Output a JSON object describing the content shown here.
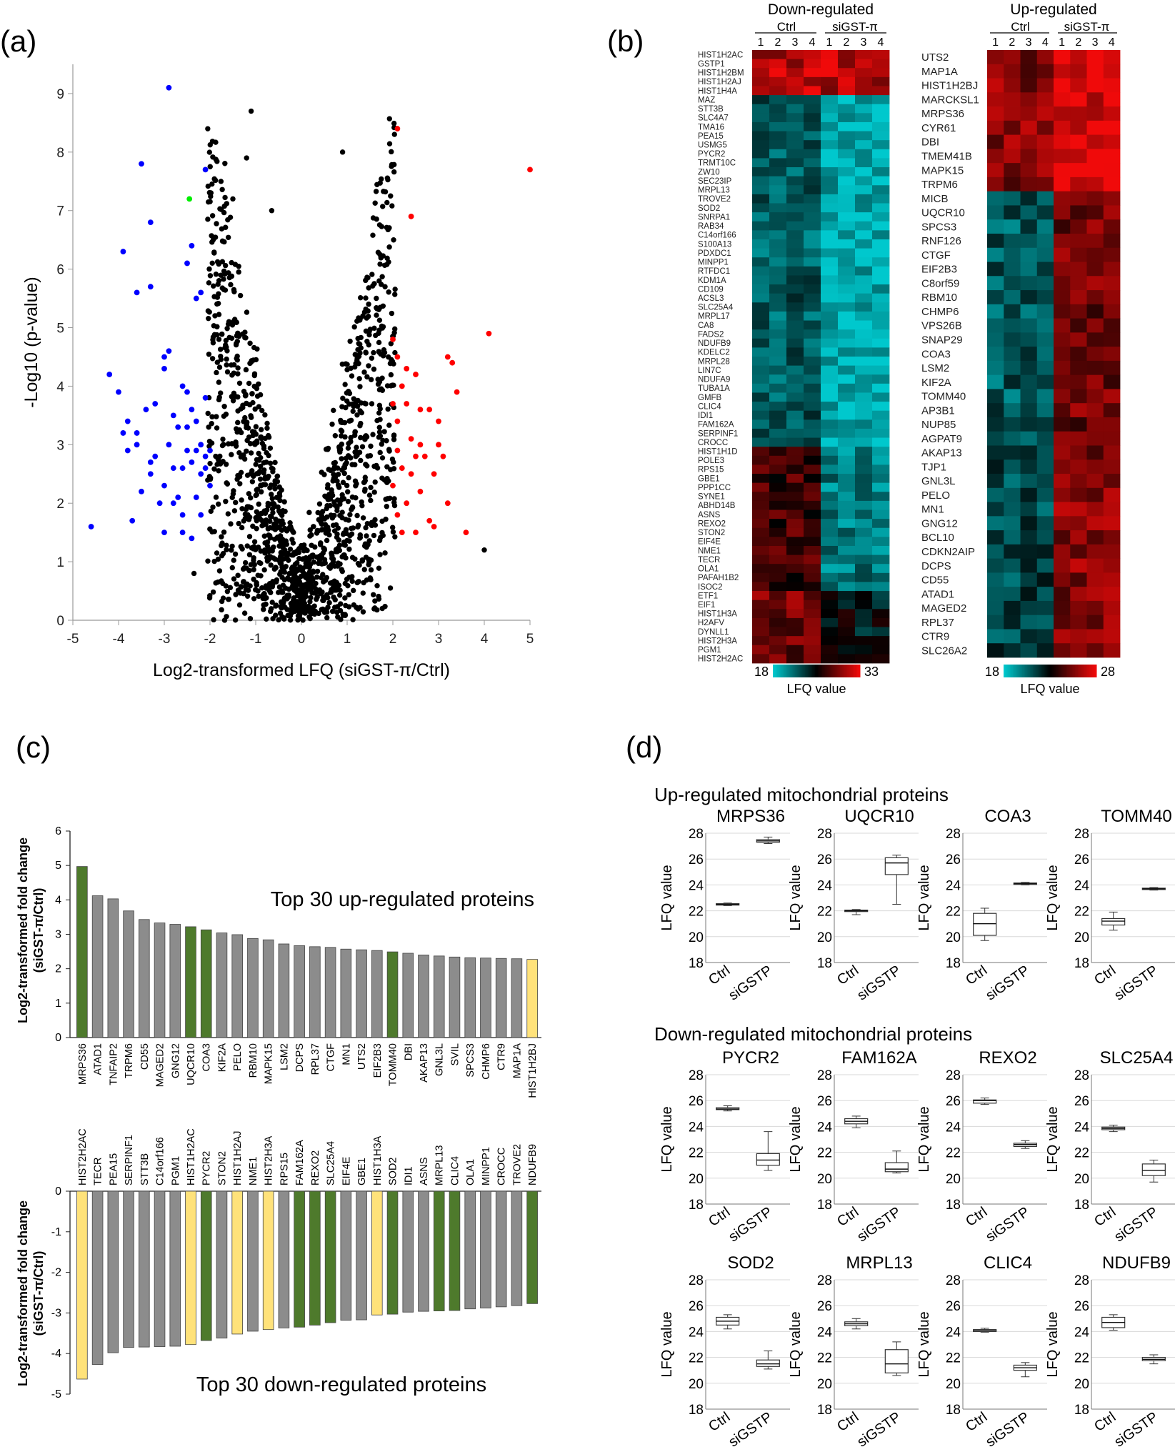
{
  "panel_labels": {
    "a": "(a)",
    "b": "(b)",
    "c": "(c)",
    "d": "(d)"
  },
  "chart_data": [
    {
      "id": "volcano",
      "type": "scatter",
      "title": "",
      "xlabel": "Log2-transformed LFQ (siGST-π/Ctrl)",
      "ylabel": "-Log10 (p-value)",
      "xlim": [
        -5,
        5
      ],
      "ylim": [
        0,
        9.5
      ],
      "xticks": [
        -5,
        -4,
        -3,
        -2,
        -1,
        0,
        1,
        2,
        3,
        4,
        5
      ],
      "yticks": [
        0,
        1,
        2,
        3,
        4,
        5,
        6,
        7,
        8,
        9
      ],
      "colors": {
        "ns": "#000000",
        "down": "#0000ff",
        "up": "#ff0000",
        "highlight": "#00ee00"
      },
      "series": [
        {
          "name": "down-regulated",
          "color": "#0000ff",
          "points": [
            [
              -2.9,
              9.1
            ],
            [
              -3.5,
              7.8
            ],
            [
              -2.1,
              7.7
            ],
            [
              -3.9,
              6.3
            ],
            [
              -3.3,
              6.8
            ],
            [
              -2.4,
              6.4
            ],
            [
              -3.3,
              5.7
            ],
            [
              -3.6,
              5.6
            ],
            [
              -2.5,
              6.1
            ],
            [
              -2.3,
              5.5
            ],
            [
              -2.2,
              5.6
            ],
            [
              -4.6,
              1.6
            ],
            [
              -4.2,
              4.2
            ],
            [
              -4.0,
              3.9
            ],
            [
              -3.7,
              1.7
            ],
            [
              -3.8,
              3.4
            ],
            [
              -3.6,
              3.2
            ],
            [
              -3.4,
              3.6
            ],
            [
              -3.2,
              2.8
            ],
            [
              -3.0,
              4.5
            ],
            [
              -2.9,
              4.6
            ],
            [
              -3.0,
              4.3
            ],
            [
              -2.6,
              4.0
            ],
            [
              -2.5,
              3.9
            ],
            [
              -2.4,
              3.6
            ],
            [
              -2.3,
              3.4
            ],
            [
              -2.2,
              3.0
            ],
            [
              -2.1,
              2.8
            ],
            [
              -2.3,
              2.1
            ],
            [
              -2.4,
              1.4
            ],
            [
              -2.6,
              1.8
            ],
            [
              -2.8,
              2.0
            ],
            [
              -3.0,
              2.3
            ],
            [
              -3.3,
              2.5
            ],
            [
              -3.5,
              2.2
            ],
            [
              -3.8,
              2.9
            ],
            [
              -3.9,
              3.2
            ],
            [
              -3.6,
              3.0
            ],
            [
              -2.7,
              3.3
            ],
            [
              -2.6,
              2.6
            ],
            [
              -2.5,
              2.9
            ],
            [
              -2.2,
              2.5
            ],
            [
              -2.1,
              2.6
            ],
            [
              -2.2,
              1.8
            ],
            [
              -2.0,
              2.3
            ],
            [
              -2.4,
              2.7
            ],
            [
              -2.6,
              1.5
            ],
            [
              -3.0,
              1.5
            ],
            [
              -3.3,
              2.7
            ],
            [
              -3.2,
              3.7
            ],
            [
              -2.9,
              3.0
            ],
            [
              -2.8,
              3.5
            ],
            [
              -2.5,
              3.3
            ],
            [
              -2.3,
              2.9
            ],
            [
              -2.1,
              3.8
            ],
            [
              -2.0,
              2.9
            ],
            [
              -2.8,
              2.6
            ],
            [
              -3.1,
              2.0
            ],
            [
              -2.7,
              2.1
            ]
          ]
        },
        {
          "name": "up-regulated",
          "color": "#ff0000",
          "points": [
            [
              2.1,
              8.4
            ],
            [
              2.4,
              6.9
            ],
            [
              5.0,
              7.7
            ],
            [
              4.1,
              4.9
            ],
            [
              2.0,
              4.8
            ],
            [
              2.1,
              4.5
            ],
            [
              2.3,
              4.3
            ],
            [
              2.5,
              4.2
            ],
            [
              2.2,
              4.0
            ],
            [
              2.0,
              3.7
            ],
            [
              2.1,
              3.4
            ],
            [
              2.4,
              3.1
            ],
            [
              2.6,
              3.6
            ],
            [
              3.0,
              3.4
            ],
            [
              3.2,
              4.5
            ],
            [
              3.3,
              4.4
            ],
            [
              3.4,
              3.9
            ],
            [
              3.0,
              3.0
            ],
            [
              3.1,
              2.8
            ],
            [
              2.9,
              2.5
            ],
            [
              2.6,
              2.2
            ],
            [
              2.3,
              2.0
            ],
            [
              2.1,
              1.8
            ],
            [
              2.5,
              1.5
            ],
            [
              2.8,
              1.7
            ],
            [
              3.2,
              2.0
            ],
            [
              3.6,
              1.5
            ],
            [
              2.4,
              2.5
            ],
            [
              2.2,
              2.6
            ],
            [
              2.7,
              2.8
            ],
            [
              2.0,
              2.3
            ],
            [
              2.2,
              1.5
            ],
            [
              2.6,
              3.0
            ],
            [
              2.8,
              3.6
            ],
            [
              2.5,
              2.8
            ],
            [
              2.1,
              2.9
            ],
            [
              2.3,
              3.7
            ],
            [
              2.9,
              1.6
            ]
          ]
        },
        {
          "name": "highlight",
          "color": "#00ee00",
          "points": [
            [
              -2.45,
              7.2
            ]
          ]
        }
      ]
    },
    {
      "id": "heatmap-down",
      "type": "heatmap",
      "title": "Down-regulated",
      "group_labels": [
        "Ctrl",
        "siGST-π"
      ],
      "column_labels": [
        "1",
        "2",
        "3",
        "4",
        "1",
        "2",
        "3",
        "4"
      ],
      "colorbar": {
        "label": "LFQ value",
        "min": "18",
        "max": "33"
      },
      "rows": [
        "HIST1H2AC",
        "GSTP1",
        "HIST1H2BM",
        "HIST1H2AJ",
        "HIST1H4A",
        "MAZ",
        "STT3B",
        "SLC4A7",
        "TMA16",
        "PEA15",
        "USMG5",
        "PYCR2",
        "TRMT10C",
        "ZW10",
        "SEC23IP",
        "MRPL13",
        "TROVE2",
        "SOD2",
        "SNRPA1",
        "RAB34",
        "C14orf166",
        "S100A13",
        "PDXDC1",
        "MINPP1",
        "RTFDC1",
        "KDM1A",
        "CD109",
        "ACSL3",
        "SLC25A4",
        "MRPL17",
        "CA8",
        "FADS2",
        "NDUFB9",
        "KDELC2",
        "MRPL28",
        "LIN7C",
        "NDUFA9",
        "TUBA1A",
        "GMFB",
        "CLIC4",
        "IDI1",
        "FAM162A",
        "SERPINF1",
        "CROCC",
        "HIST1H1D",
        "POLE3",
        "RPS15",
        "GBE1",
        "PPP1CC",
        "SYNE1",
        "ABHD14B",
        "ASNS",
        "REXO2",
        "STON2",
        "EIF4E",
        "NME1",
        "TECR",
        "OLA1",
        "PAFAH1B2",
        "ISOC2",
        "ETF1",
        "EIF1",
        "HIST1H3A",
        "H2AFV",
        "DYNLL1",
        "HIST2H3A",
        "PGM1",
        "HIST2H2AC"
      ]
    },
    {
      "id": "heatmap-up",
      "type": "heatmap",
      "title": "Up-regulated",
      "group_labels": [
        "Ctrl",
        "siGST-π"
      ],
      "column_labels": [
        "1",
        "2",
        "3",
        "4",
        "1",
        "2",
        "3",
        "4"
      ],
      "colorbar": {
        "label": "LFQ value",
        "min": "18",
        "max": "28"
      },
      "rows": [
        "UTS2",
        "MAP1A",
        "HIST1H2BJ",
        "MARCKSL1",
        "MRPS36",
        "CYR61",
        "DBI",
        "TMEM41B",
        "MAPK15",
        "TRPM6",
        "MICB",
        "UQCR10",
        "SPCS3",
        "RNF126",
        "CTGF",
        "EIF2B3",
        "C8orf59",
        "RBM10",
        "CHMP6",
        "VPS26B",
        "SNAP29",
        "COA3",
        "LSM2",
        "KIF2A",
        "TOMM40",
        "AP3B1",
        "NUP85",
        "AGPAT9",
        "AKAP13",
        "TJP1",
        "GNL3L",
        "PELO",
        "MN1",
        "GNG12",
        "BCL10",
        "CDKN2AIP",
        "DCPS",
        "CD55",
        "ATAD1",
        "MAGED2",
        "RPL37",
        "CTR9",
        "SLC26A2"
      ]
    },
    {
      "id": "bar-up",
      "type": "bar",
      "title": "Top 30  up-regulated proteins",
      "ylabel": "Log2-transformed fold change (siGST-π/Ctrl)",
      "ylim": [
        0,
        6
      ],
      "yticks": [
        0,
        1,
        2,
        3,
        4,
        5,
        6
      ],
      "colors": {
        "gray": "#8c8c8c",
        "green": "#4e7a2c",
        "yellow": "#ffe27a"
      },
      "categories": [
        "MRPS36",
        "ATAD1",
        "TNFAIP2",
        "TRPM6",
        "CD55",
        "MAGED2",
        "GNG12",
        "UQCR10",
        "COA3",
        "KIF2A",
        "PELO",
        "RBM10",
        "MAPK15",
        "LSM2",
        "DCPS",
        "RPL37",
        "CTGF",
        "MN1",
        "UTS2",
        "EIF2B3",
        "TOMM40",
        "DBI",
        "AKAP13",
        "GNL3L",
        "SVIL",
        "SPCS3",
        "CHMP6",
        "CTR9",
        "MAP1A",
        "HIST1H2BJ"
      ],
      "values": [
        4.97,
        4.12,
        4.03,
        3.68,
        3.43,
        3.33,
        3.29,
        3.22,
        3.13,
        3.04,
        2.99,
        2.88,
        2.84,
        2.72,
        2.67,
        2.64,
        2.62,
        2.57,
        2.55,
        2.53,
        2.49,
        2.45,
        2.4,
        2.37,
        2.34,
        2.32,
        2.31,
        2.3,
        2.29,
        2.27
      ],
      "bar_colors": [
        "green",
        "gray",
        "gray",
        "gray",
        "gray",
        "gray",
        "gray",
        "green",
        "green",
        "gray",
        "gray",
        "gray",
        "gray",
        "gray",
        "gray",
        "gray",
        "gray",
        "gray",
        "gray",
        "gray",
        "green",
        "gray",
        "gray",
        "gray",
        "gray",
        "gray",
        "gray",
        "gray",
        "gray",
        "yellow"
      ]
    },
    {
      "id": "bar-down",
      "type": "bar",
      "title": "Top 30 down-regulated proteins",
      "ylabel": "Log2-transformed fold change (siGST-π/Ctrl)",
      "ylim": [
        -5,
        0
      ],
      "yticks": [
        0,
        -1,
        -2,
        -3,
        -4,
        -5
      ],
      "colors": {
        "gray": "#8c8c8c",
        "green": "#4e7a2c",
        "yellow": "#ffe27a"
      },
      "categories": [
        "HIST2H2AC",
        "TECR",
        "PEA15",
        "SERPINF1",
        "STT3B",
        "C14orf166",
        "PGM1",
        "HIST1H2AC",
        "PYCR2",
        "STON2",
        "HIST1H2AJ",
        "NME1",
        "HIST2H3A",
        "RPS15",
        "FAM162A",
        "REXO2",
        "SLC25A4",
        "EIF4E",
        "GBE1",
        "HIST1H3A",
        "SOD2",
        "IDI1",
        "ASNS",
        "MRPL13",
        "CLIC4",
        "OLA1",
        "MINPP1",
        "CROCC",
        "TROVE2",
        "NDUFB9"
      ],
      "values": [
        -4.63,
        -4.27,
        -3.98,
        -3.85,
        -3.84,
        -3.83,
        -3.82,
        -3.78,
        -3.68,
        -3.62,
        -3.52,
        -3.45,
        -3.41,
        -3.37,
        -3.35,
        -3.3,
        -3.24,
        -3.18,
        -3.17,
        -3.05,
        -3.03,
        -2.98,
        -2.96,
        -2.95,
        -2.94,
        -2.9,
        -2.88,
        -2.85,
        -2.82,
        -2.77
      ],
      "bar_colors": [
        "yellow",
        "gray",
        "gray",
        "gray",
        "gray",
        "gray",
        "gray",
        "yellow",
        "green",
        "gray",
        "yellow",
        "gray",
        "yellow",
        "gray",
        "green",
        "green",
        "green",
        "gray",
        "gray",
        "yellow",
        "green",
        "gray",
        "gray",
        "green",
        "green",
        "gray",
        "gray",
        "gray",
        "gray",
        "green"
      ]
    },
    {
      "id": "boxplots",
      "type": "box",
      "ylabel": "LFQ value",
      "ylim": [
        18,
        28
      ],
      "yticks": [
        18,
        20,
        22,
        24,
        26,
        28
      ],
      "categories": [
        "Ctrl",
        "siGSTP"
      ],
      "section_titles": [
        "Up-regulated mitochondrial proteins",
        "Down-regulated mitochondrial proteins"
      ],
      "plots": [
        {
          "name": "MRPS36",
          "section": 0,
          "ctrl": [
            22.4,
            22.45,
            22.5,
            22.55,
            22.6
          ],
          "si": [
            27.2,
            27.3,
            27.4,
            27.5,
            27.7
          ]
        },
        {
          "name": "UQCR10",
          "section": 0,
          "ctrl": [
            21.7,
            21.95,
            22.0,
            22.05,
            22.1
          ],
          "si": [
            22.5,
            24.8,
            25.7,
            26.1,
            26.3
          ]
        },
        {
          "name": "COA3",
          "section": 0,
          "ctrl": [
            19.7,
            20.1,
            21.0,
            21.8,
            22.2
          ],
          "si": [
            24.0,
            24.05,
            24.1,
            24.15,
            24.2
          ]
        },
        {
          "name": "TOMM40",
          "section": 0,
          "ctrl": [
            20.5,
            20.9,
            21.2,
            21.4,
            21.9
          ],
          "si": [
            23.6,
            23.65,
            23.7,
            23.75,
            23.8
          ]
        },
        {
          "name": "PYCR2",
          "section": 1,
          "ctrl": [
            25.2,
            25.3,
            25.35,
            25.45,
            25.6
          ],
          "si": [
            20.6,
            21.0,
            21.4,
            21.9,
            23.6
          ]
        },
        {
          "name": "FAM162A",
          "section": 1,
          "ctrl": [
            23.9,
            24.2,
            24.4,
            24.6,
            24.8
          ],
          "si": [
            20.4,
            20.5,
            20.7,
            21.2,
            22.1
          ]
        },
        {
          "name": "REXO2",
          "section": 1,
          "ctrl": [
            25.7,
            25.8,
            26.0,
            26.05,
            26.2
          ],
          "si": [
            22.3,
            22.45,
            22.6,
            22.7,
            22.9
          ]
        },
        {
          "name": "SLC25A4",
          "section": 1,
          "ctrl": [
            23.6,
            23.75,
            23.85,
            23.95,
            24.1
          ],
          "si": [
            19.7,
            20.2,
            20.6,
            21.1,
            21.4
          ]
        },
        {
          "name": "SOD2",
          "section": 1,
          "ctrl": [
            24.2,
            24.5,
            24.8,
            25.1,
            25.3
          ],
          "si": [
            21.1,
            21.3,
            21.5,
            21.8,
            22.5
          ]
        },
        {
          "name": "MRPL13",
          "section": 1,
          "ctrl": [
            24.2,
            24.45,
            24.6,
            24.75,
            25.0
          ],
          "si": [
            20.6,
            20.8,
            21.5,
            22.6,
            23.2
          ]
        },
        {
          "name": "CLIC4",
          "section": 1,
          "ctrl": [
            23.95,
            24.0,
            24.1,
            24.15,
            24.25
          ],
          "si": [
            20.5,
            21.0,
            21.2,
            21.4,
            21.6
          ]
        },
        {
          "name": "NDUFB9",
          "section": 1,
          "ctrl": [
            24.1,
            24.3,
            24.7,
            25.1,
            25.3
          ],
          "si": [
            21.5,
            21.75,
            21.85,
            22.0,
            22.2
          ]
        }
      ]
    }
  ]
}
